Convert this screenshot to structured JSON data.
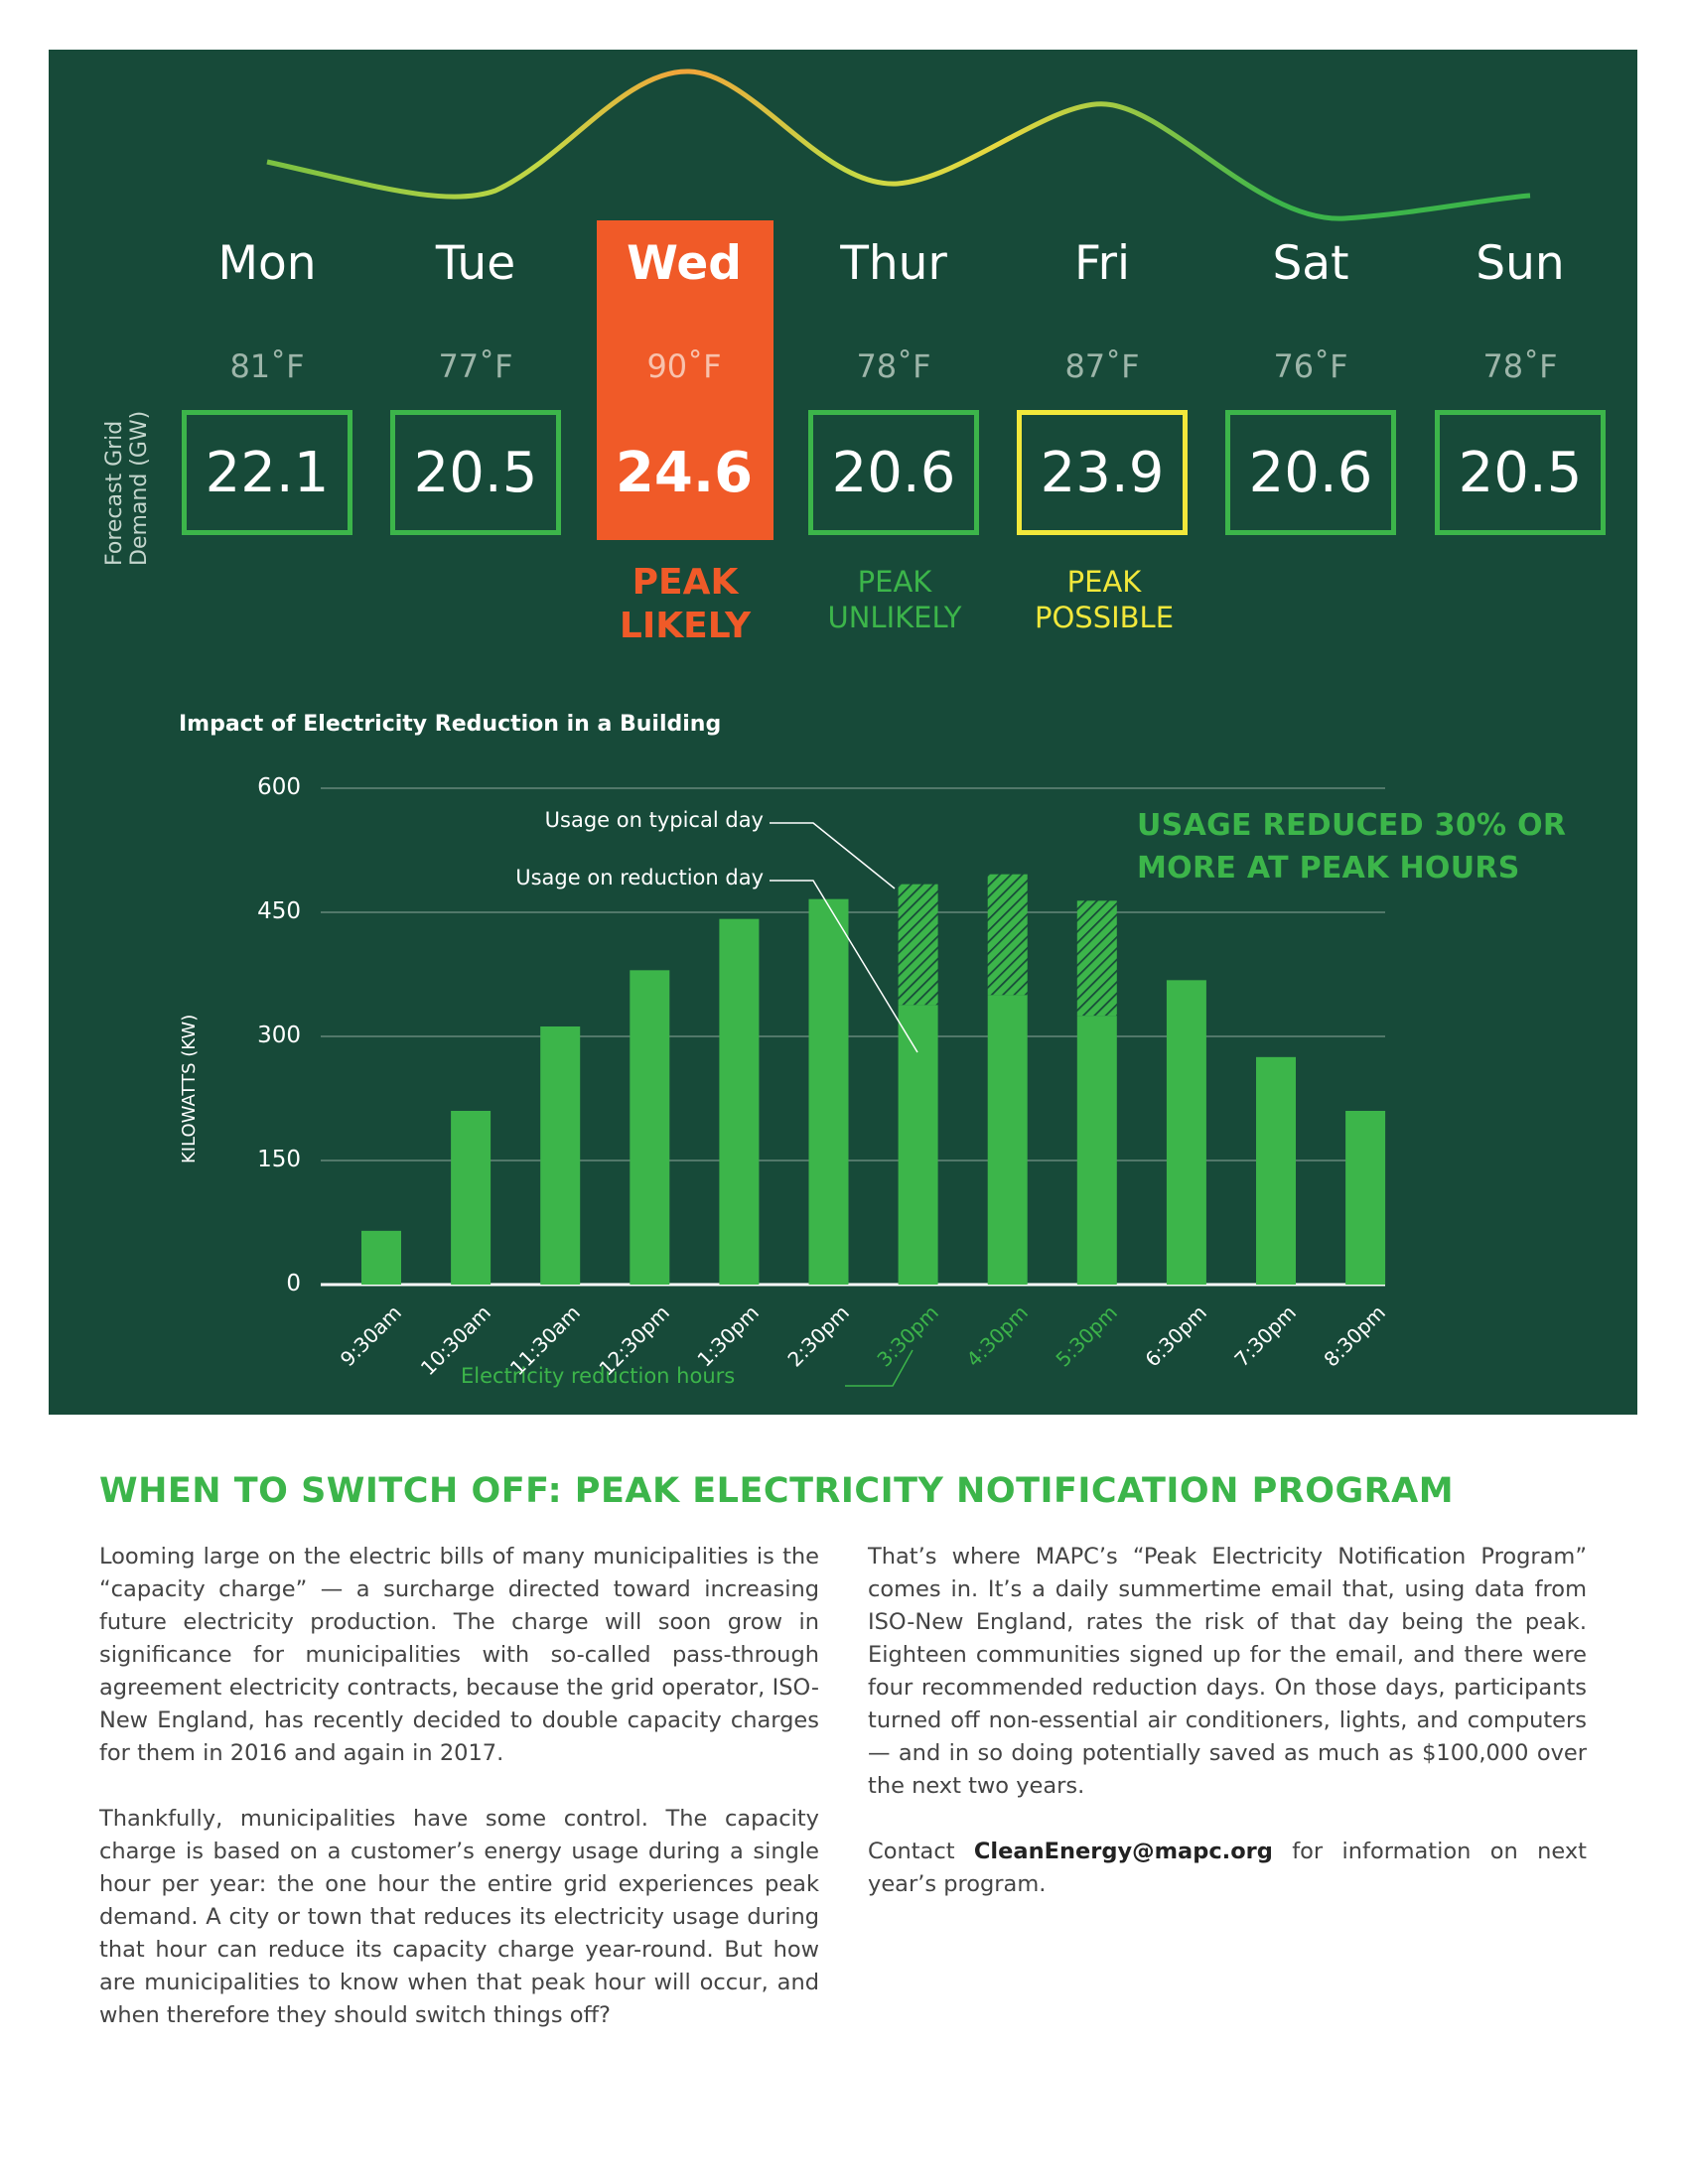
{
  "forecast": {
    "y_label_line1": "Forecast Grid",
    "y_label_line2": "Demand (GW)",
    "days": [
      {
        "day": "Mon",
        "temp": "81˚F",
        "demand": "22.1"
      },
      {
        "day": "Tue",
        "temp": "77˚F",
        "demand": "20.5"
      },
      {
        "day": "Wed",
        "temp": "90˚F",
        "demand": "24.6"
      },
      {
        "day": "Thur",
        "temp": "78˚F",
        "demand": "20.6"
      },
      {
        "day": "Fri",
        "temp": "87˚F",
        "demand": "23.9"
      },
      {
        "day": "Sat",
        "temp": "76˚F",
        "demand": "20.6"
      },
      {
        "day": "Sun",
        "temp": "78˚F",
        "demand": "20.5"
      }
    ],
    "status_likely": [
      "PEAK",
      "LIKELY"
    ],
    "status_unlikely": [
      "PEAK",
      "UNLIKELY"
    ],
    "status_possible": [
      "PEAK",
      "POSSIBLE"
    ],
    "colors": {
      "green": "#3cb54a",
      "orange": "#f05a28",
      "yellow": "#f2e83b",
      "panel": "#174a39"
    }
  },
  "chart_data": {
    "type": "bar",
    "title": "Impact of Electricity Reduction in a Building",
    "ylabel": "KILOWATTS (KW)",
    "ylim": [
      0,
      600
    ],
    "yticks": [
      "0",
      "150",
      "300",
      "450",
      "600"
    ],
    "categories": [
      "9:30am",
      "10:30am",
      "11:30am",
      "12:30pm",
      "1:30pm",
      "2:30pm",
      "3:30pm",
      "4:30pm",
      "5:30pm",
      "6:30pm",
      "7:30pm",
      "8:30pm"
    ],
    "series": [
      {
        "name": "Usage on reduction day",
        "values": [
          65,
          210,
          312,
          380,
          442,
          466,
          338,
          350,
          325,
          368,
          275,
          210
        ]
      },
      {
        "name": "Usage on typical day",
        "values": [
          65,
          210,
          312,
          380,
          442,
          466,
          484,
          496,
          464,
          368,
          275,
          210
        ]
      }
    ],
    "reduction_hours": [
      "3:30pm",
      "4:30pm",
      "5:30pm"
    ],
    "annotations": {
      "typical": "Usage on typical day",
      "reduction": "Usage on reduction day",
      "hours": "Electricity reduction hours",
      "callout_line1": "USAGE REDUCED 30% OR",
      "callout_line2": "MORE AT PEAK HOURS"
    },
    "grid": true
  },
  "article": {
    "heading": "WHEN TO SWITCH OFF: PEAK ELECTRICITY NOTIFICATION PROGRAM",
    "left_p1": "Looming large on the electric bills of many municipalities is the “capacity charge” — a surcharge directed toward increasing future electricity production. The charge will soon grow in significance for municipalities with so-called pass-through agreement electricity contracts, because the grid operator, ISO-New England, has recently decided to double capacity charges for them in 2016 and again in 2017.",
    "left_p2": "Thankfully, municipalities have some control. The capacity charge is based on a customer’s energy usage during a single hour per year: the one hour the entire grid experiences peak demand. A city or town that reduces its electricity usage during that hour can reduce its capacity charge year-round. But how are municipalities to know when that peak hour will occur, and when therefore they should switch things off?",
    "right_p1": "That’s where MAPC’s “Peak Electricity Notification Program” comes in. It’s a daily summertime email that, using data from ISO-New England, rates the risk of that day being the peak. Eighteen communities signed up for the email, and there were four recommended reduction days. On those days, participants turned off non-essential air conditioners, lights, and computers — and in so doing potentially saved as much as $100,000 over the next two years.",
    "right_p2_before": "Contact ",
    "right_p2_email": "CleanEnergy@mapc.org",
    "right_p2_after": " for information on next year’s program."
  }
}
